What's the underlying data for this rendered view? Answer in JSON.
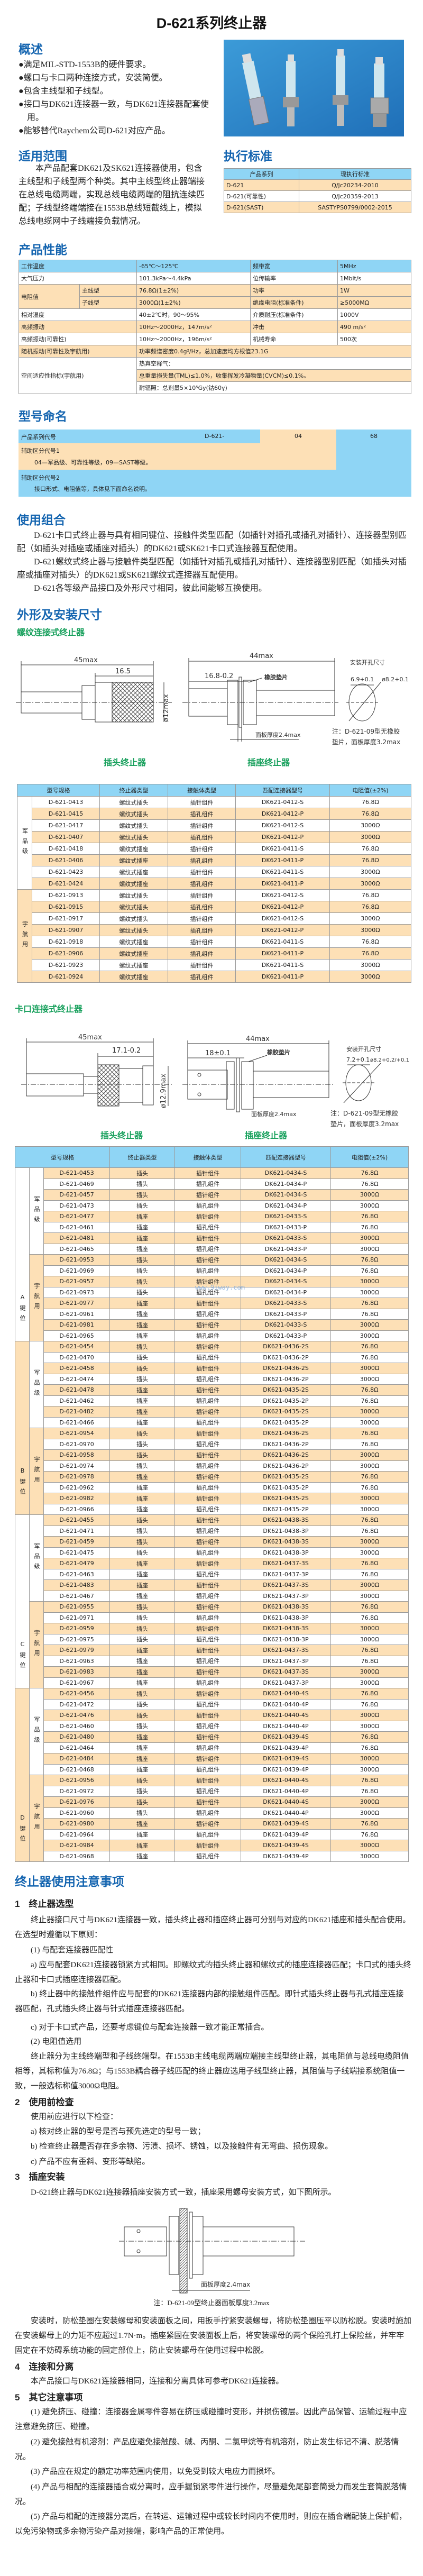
{
  "title": "D-621系列终止器",
  "overview": {
    "heading": "概述",
    "bullets": [
      "●满足MIL-STD-1553B的硬件要求。",
      "●螺口与卡口两种连接方式，安装简便。",
      "●包含主线型和子线型。",
      "●接口与DK621连接器一致，与DK621连接器配套使用。",
      "●能够替代Raychem公司D-621对应产品。"
    ]
  },
  "scope": {
    "heading": "适用范围",
    "text": "本产品配套DK621及SK621连接器使用，包含主线型和子线型两个种类。其中主线型终止器端接在总线电缆两端，实现总线电缆两端的阻抗连续匹配；子线型终端端接在1553B总线短截线上，模拟总线电缆网中子线端接负载情况。"
  },
  "standards": {
    "heading": "执行标准",
    "headers": [
      "产品系列",
      "现执行标准"
    ],
    "rows": [
      [
        "D-621",
        "Q/Jc20234-2010"
      ],
      [
        "D-621(可靠性)",
        "Q/Jc20359-2013"
      ],
      [
        "D-621(SAST)",
        "SASTYPS0799/0002-2015"
      ]
    ]
  },
  "performance": {
    "heading": "产品性能",
    "r1": [
      "工作温度",
      "-65℃～125℃",
      "频带宽",
      "5MHz"
    ],
    "r2": [
      "大气压力",
      "101.3kPa～4.4kPa",
      "位传输率",
      "1Mbit/s"
    ],
    "r3": [
      "电阻值",
      "主线型",
      "76.8Ω(1±2%)",
      "功率",
      "1W"
    ],
    "r4": [
      "子线型",
      "3000Ω(1±2%)",
      "绝缘电阻(标准条件)",
      "≥5000MΩ"
    ],
    "r5": [
      "相对湿度",
      "40±2℃时，90～95%",
      "介质耐压(标准条件)",
      "1000V"
    ],
    "r6": [
      "高频振动",
      "10Hz～2000Hz，147m/s²",
      "冲击",
      "490 m/s²"
    ],
    "r7": [
      "高频振动(可靠性)",
      "10Hz～2000Hz，196m/s²",
      "机械寿命",
      "500次"
    ],
    "r8": [
      "随机振动(可靠性及宇航用)",
      "功率频谱密度0.4g²/Hz，总加速度均方根值23.1G"
    ],
    "r9": [
      "空间适应性指标(宇航用)",
      "热真空释气：",
      "总重量损失量(TML)≤1.0%，收集挥发冷凝物量(CVCM)≤0.1%。",
      "耐辐照：总剂量5×10⁵Gy(钴60γ)"
    ]
  },
  "naming": {
    "heading": "型号命名",
    "series_label": "产品系列代号",
    "series_code": "D-621-",
    "code1": "04",
    "code2": "68",
    "aux1_label": "辅助区分代号1",
    "aux1_desc": "04—军品级、可靠性等级，09—SAST等级。",
    "aux2_label": "辅助区分代号2",
    "aux2_desc": "接口形式、电阻值等，具体见下面命名说明。"
  },
  "combination": {
    "heading": "使用组合",
    "paras": [
      "D-621卡口式终止器与具有相同键位、接触件类型匹配（如插针对插孔或插孔对插针）、连接器型别匹配（如插头对插座或插座对插头）的DK621或SK621卡口式连接器互配使用。",
      "D-621螺纹式终止器与接触件类型匹配（如插针对插孔或插孔对插针）、连接器型别匹配（如插头对插座或插座对插头）的DK621或SK621螺纹式连接器互配使用。",
      "D-621各等级产品接口及外形尺寸相同，彼此间能够互换使用。"
    ]
  },
  "dimensions": {
    "heading": "外形及安装尺寸",
    "threaded": {
      "heading": "螺纹连接式终止器",
      "plug_len": "45max",
      "plug_nut": "16.5",
      "plug_dia": "ø12max",
      "rec_len": "44max",
      "rec_front": "16.8-0.2",
      "gasket": "橡胶垫片",
      "panel": "面板厚度2.4max",
      "hole_title": "安装开孔尺寸",
      "hole_w": "6.9+0.1",
      "hole_d": "ø8.2+0.1",
      "note1": "注：D-621-09型无橡胶",
      "note2": "垫片，面板厚度3.2max",
      "plug_caption": "插头终止器",
      "rec_caption": "插座终止器"
    },
    "bayonet": {
      "heading": "卡口连接式终止器",
      "plug_len": "45max",
      "plug_nut": "17.1-0.2",
      "plug_dia": "ø12.9max",
      "rec_len": "44max",
      "rec_front": "18±0.1",
      "gasket": "橡胶垫片",
      "panel": "面板厚度2.4max",
      "hole_title": "安装开孔尺寸",
      "hole_w": "7.2+0.1",
      "hole_d": "ø8.2+0.2/+0.1",
      "note1": "注：D-621-09型无橡胶",
      "note2": "垫片，面板厚度3.2max",
      "plug_caption": "插头终止器",
      "rec_caption": "插座终止器"
    }
  },
  "table_headers": [
    "型号规格",
    "终止器类型",
    "接触体类型",
    "匹配连接器型号",
    "电阻值(±2%)"
  ],
  "threaded_table": {
    "groups": [
      "军品级",
      "宇航用"
    ],
    "rows": [
      [
        "D-621-0413",
        "螺纹式插头",
        "插针组件",
        "DK621-0412-S",
        "76.8Ω"
      ],
      [
        "D-621-0415",
        "螺纹式插头",
        "插孔组件",
        "DK621-0412-P",
        "76.8Ω"
      ],
      [
        "D-621-0417",
        "螺纹式插头",
        "插针组件",
        "DK621-0412-S",
        "3000Ω"
      ],
      [
        "D-621-0407",
        "螺纹式插头",
        "插孔组件",
        "DK621-0412-P",
        "3000Ω"
      ],
      [
        "D-621-0418",
        "螺纹式插座",
        "插针组件",
        "DK621-0411-S",
        "76.8Ω"
      ],
      [
        "D-621-0406",
        "螺纹式插座",
        "插孔组件",
        "DK621-0411-P",
        "76.8Ω"
      ],
      [
        "D-621-0423",
        "螺纹式插座",
        "插针组件",
        "DK621-0411-S",
        "3000Ω"
      ],
      [
        "D-621-0424",
        "螺纹式插座",
        "插孔组件",
        "DK621-0411-P",
        "3000Ω"
      ],
      [
        "D-621-0913",
        "螺纹式插头",
        "插针组件",
        "DK621-0412-S",
        "76.8Ω"
      ],
      [
        "D-621-0915",
        "螺纹式插头",
        "插孔组件",
        "DK621-0412-P",
        "76.8Ω"
      ],
      [
        "D-621-0917",
        "螺纹式插头",
        "插针组件",
        "DK621-0412-S",
        "3000Ω"
      ],
      [
        "D-621-0907",
        "螺纹式插头",
        "插孔组件",
        "DK621-0412-P",
        "3000Ω"
      ],
      [
        "D-621-0918",
        "螺纹式插座",
        "插针组件",
        "DK621-0411-S",
        "76.8Ω"
      ],
      [
        "D-621-0906",
        "螺纹式插座",
        "插孔组件",
        "DK621-0411-P",
        "76.8Ω"
      ],
      [
        "D-621-0923",
        "螺纹式插座",
        "插针组件",
        "DK621-0411-S",
        "3000Ω"
      ],
      [
        "D-621-0924",
        "螺纹式插座",
        "插孔组件",
        "DK621-0411-P",
        "3000Ω"
      ]
    ]
  },
  "bayonet_table": {
    "keys": [
      "A键位",
      "B键位",
      "C键位",
      "D键位"
    ],
    "grades": [
      "军品级",
      "宇航用"
    ],
    "rows": [
      [
        "D-621-0453",
        "插头",
        "插针组件",
        "DK621-0434-S",
        "76.8Ω"
      ],
      [
        "D-621-0469",
        "插头",
        "插孔组件",
        "DK621-0434-P",
        "76.8Ω"
      ],
      [
        "D-621-0457",
        "插头",
        "插针组件",
        "DK621-0434-S",
        "3000Ω"
      ],
      [
        "D-621-0473",
        "插头",
        "插孔组件",
        "DK621-0434-P",
        "3000Ω"
      ],
      [
        "D-621-0477",
        "插座",
        "插针组件",
        "DK621-0433-S",
        "76.8Ω"
      ],
      [
        "D-621-0461",
        "插座",
        "插孔组件",
        "DK621-0433-P",
        "76.8Ω"
      ],
      [
        "D-621-0481",
        "插座",
        "插针组件",
        "DK621-0433-S",
        "3000Ω"
      ],
      [
        "D-621-0465",
        "插座",
        "插孔组件",
        "DK621-0433-P",
        "3000Ω"
      ],
      [
        "D-621-0953",
        "插头",
        "插针组件",
        "DK621-0434-S",
        "76.8Ω"
      ],
      [
        "D-621-0969",
        "插头",
        "插孔组件",
        "DK621-0434-P",
        "76.8Ω"
      ],
      [
        "D-621-0957",
        "插头",
        "插针组件",
        "DK621-0434-S",
        "3000Ω"
      ],
      [
        "D-621-0973",
        "插头",
        "插孔组件",
        "DK621-0434-P",
        "3000Ω"
      ],
      [
        "D-621-0977",
        "插座",
        "插针组件",
        "DK621-0433-S",
        "76.8Ω"
      ],
      [
        "D-621-0961",
        "插座",
        "插孔组件",
        "DK621-0433-P",
        "76.8Ω"
      ],
      [
        "D-621-0981",
        "插座",
        "插针组件",
        "DK621-0433-S",
        "3000Ω"
      ],
      [
        "D-621-0965",
        "插座",
        "插孔组件",
        "DK621-0433-P",
        "3000Ω"
      ],
      [
        "D-621-0454",
        "插头",
        "插针组件",
        "DK621-0436-2S",
        "76.8Ω"
      ],
      [
        "D-621-0470",
        "插头",
        "插孔组件",
        "DK621-0436-2P",
        "76.8Ω"
      ],
      [
        "D-621-0458",
        "插头",
        "插针组件",
        "DK621-0436-2S",
        "3000Ω"
      ],
      [
        "D-621-0474",
        "插头",
        "插孔组件",
        "DK621-0436-2P",
        "3000Ω"
      ],
      [
        "D-621-0478",
        "插座",
        "插针组件",
        "DK621-0435-2S",
        "76.8Ω"
      ],
      [
        "D-621-0462",
        "插座",
        "插孔组件",
        "DK621-0435-2P",
        "76.8Ω"
      ],
      [
        "D-621-0482",
        "插座",
        "插针组件",
        "DK621-0435-2S",
        "3000Ω"
      ],
      [
        "D-621-0466",
        "插座",
        "插孔组件",
        "DK621-0435-2P",
        "3000Ω"
      ],
      [
        "D-621-0954",
        "插头",
        "插针组件",
        "DK621-0436-2S",
        "76.8Ω"
      ],
      [
        "D-621-0970",
        "插头",
        "插孔组件",
        "DK621-0436-2P",
        "76.8Ω"
      ],
      [
        "D-621-0958",
        "插头",
        "插针组件",
        "DK621-0436-2S",
        "3000Ω"
      ],
      [
        "D-621-0974",
        "插头",
        "插孔组件",
        "DK621-0436-2P",
        "3000Ω"
      ],
      [
        "D-621-0978",
        "插座",
        "插针组件",
        "DK621-0435-2S",
        "76.8Ω"
      ],
      [
        "D-621-0962",
        "插座",
        "插孔组件",
        "DK621-0435-2P",
        "76.8Ω"
      ],
      [
        "D-621-0982",
        "插座",
        "插针组件",
        "DK621-0435-2S",
        "3000Ω"
      ],
      [
        "D-621-0966",
        "插座",
        "插孔组件",
        "DK621-0435-2P",
        "3000Ω"
      ],
      [
        "D-621-0455",
        "插头",
        "插针组件",
        "DK621-0438-3S",
        "76.8Ω"
      ],
      [
        "D-621-0471",
        "插头",
        "插孔组件",
        "DK621-0438-3P",
        "76.8Ω"
      ],
      [
        "D-621-0459",
        "插头",
        "插针组件",
        "DK621-0438-3S",
        "3000Ω"
      ],
      [
        "D-621-0475",
        "插头",
        "插孔组件",
        "DK621-0438-3P",
        "3000Ω"
      ],
      [
        "D-621-0479",
        "插座",
        "插针组件",
        "DK621-0437-3S",
        "76.8Ω"
      ],
      [
        "D-621-0463",
        "插座",
        "插孔组件",
        "DK621-0437-3P",
        "76.8Ω"
      ],
      [
        "D-621-0483",
        "插座",
        "插针组件",
        "DK621-0437-3S",
        "3000Ω"
      ],
      [
        "D-621-0467",
        "插座",
        "插孔组件",
        "DK621-0437-3P",
        "3000Ω"
      ],
      [
        "D-621-0955",
        "插头",
        "插针组件",
        "DK621-0438-3S",
        "76.8Ω"
      ],
      [
        "D-621-0971",
        "插头",
        "插孔组件",
        "DK621-0438-3P",
        "76.8Ω"
      ],
      [
        "D-621-0959",
        "插头",
        "插针组件",
        "DK621-0438-3S",
        "3000Ω"
      ],
      [
        "D-621-0975",
        "插头",
        "插孔组件",
        "DK621-0438-3P",
        "3000Ω"
      ],
      [
        "D-621-0979",
        "插座",
        "插针组件",
        "DK621-0437-3S",
        "76.8Ω"
      ],
      [
        "D-621-0963",
        "插座",
        "插孔组件",
        "DK621-0437-3P",
        "76.8Ω"
      ],
      [
        "D-621-0983",
        "插座",
        "插针组件",
        "DK621-0437-3S",
        "3000Ω"
      ],
      [
        "D-621-0967",
        "插座",
        "插孔组件",
        "DK621-0437-3P",
        "3000Ω"
      ],
      [
        "D-621-0456",
        "插头",
        "插针组件",
        "DK621-0440-4S",
        "76.8Ω"
      ],
      [
        "D-621-0472",
        "插头",
        "插孔组件",
        "DK621-0440-4P",
        "76.8Ω"
      ],
      [
        "D-621-0476",
        "插头",
        "插针组件",
        "DK621-0440-4S",
        "3000Ω"
      ],
      [
        "D-621-0460",
        "插头",
        "插孔组件",
        "DK621-0440-4P",
        "3000Ω"
      ],
      [
        "D-621-0480",
        "插座",
        "插针组件",
        "DK621-0439-4S",
        "76.8Ω"
      ],
      [
        "D-621-0464",
        "插座",
        "插孔组件",
        "DK621-0439-4P",
        "76.8Ω"
      ],
      [
        "D-621-0484",
        "插座",
        "插针组件",
        "DK621-0439-4S",
        "3000Ω"
      ],
      [
        "D-621-0468",
        "插座",
        "插孔组件",
        "DK621-0439-4P",
        "3000Ω"
      ],
      [
        "D-621-0956",
        "插头",
        "插针组件",
        "DK621-0440-4S",
        "76.8Ω"
      ],
      [
        "D-621-0972",
        "插头",
        "插孔组件",
        "DK621-0440-4P",
        "76.8Ω"
      ],
      [
        "D-621-0976",
        "插头",
        "插针组件",
        "DK621-0440-4S",
        "3000Ω"
      ],
      [
        "D-621-0960",
        "插头",
        "插孔组件",
        "DK621-0440-4P",
        "3000Ω"
      ],
      [
        "D-621-0980",
        "插座",
        "插针组件",
        "DK621-0439-4S",
        "76.8Ω"
      ],
      [
        "D-621-0964",
        "插座",
        "插孔组件",
        "DK621-0439-4P",
        "76.8Ω"
      ],
      [
        "D-621-0984",
        "插座",
        "插针组件",
        "DK621-0439-4S",
        "3000Ω"
      ],
      [
        "D-621-0968",
        "插座",
        "插孔组件",
        "DK621-0439-4P",
        "3000Ω"
      ]
    ]
  },
  "watermark": "www.9iway.com",
  "notes": {
    "heading": "终止器使用注意事项",
    "s1": "1　终止器选型",
    "s1p": "终止器接口尺寸与DK621连接器一致，插头终止器和插座终止器可分别与对应的DK621插座和插头配合使用。在选型时遵循以下原则：",
    "s1_1": "(1) 与配套连接器匹配性",
    "s1a": "a) 应与配套DK621连接器锁紧方式相同。即螺纹式的插头终止器和螺纹式的插座连接器匹配；卡口式的插头终止器和卡口式插座连接器匹配。",
    "s1b": "b) 终止器中的接触件组件应与配套的DK621连接器内部的接触组件匹配。即针式插头终止器与孔式插座连接器匹配，孔式插头终止器与针式插座连接器匹配。",
    "s1c": "c) 对于卡口式产品，还要考虑键位与配套连接器一致才能正常插合。",
    "s1_2": "(2) 电阻值选用",
    "s1_2p": "终止器分为主线终端型和子线终端型。在1553B主线电缆两端应端接主线型终止器，其电阻值与总线电缆阻值相等，其标称值为76.8Ω；与1553B耦合器子线匹配的终止器应选用子线型终止器，其阻值与子线端接系统阻值一致，一般选标称值3000Ω电阻。",
    "s2": "2　使用前检查",
    "s2p": "使用前应进行以下检查：",
    "s2a": "a) 核对终止器的型号是否与预先选定的型号一致；",
    "s2b": "b) 检查终止器是否存在多余物、污渍、损坏、锈蚀，以及接触件有无弯曲、损伤现象。",
    "s2c": "c) 产品不应有歪斜、变形等缺陷。",
    "s3": "3　插座安装",
    "s3p": "D-621终止器与DK621连接器插座安装方式一致，插座采用螺母安装方式，如下图所示。",
    "s3_panel": "面板厚度2.4max",
    "s3_note": "注：D-621-09型终止器面板厚度3.2max",
    "s3p2": "安装时，防松垫圈在安装螺母和安装面板之间，用扳手拧紧安装螺母，将防松垫圈压平以防松脱。安装时施加在安装螺母上的力矩不应超过1.7N·m。插座紧固在安装面板上后，将安装螺母的两个保险孔打上保险丝，并牢牢固定在不妨碍系统功能的固定部位上，防止安装螺母在使用过程中松脱。",
    "s4": "4　连接和分离",
    "s4p": "本产品接口与DK621连接器相同，连接和分离具体可参考DK621连接器。",
    "s5": "5　其它注意事项",
    "s5_1": "(1) 避免挤压、碰撞：连接器金属零件容易在挤压或碰撞时变形，并损伤镀层。因此产品保管、运输过程中应注意避免挤压、碰撞。",
    "s5_2": "(2) 避免接触有机溶剂：产品应避免接触酸、碱、丙酮、二氯甲烷等有机溶剂，防止发生标记不清、脱落情况。",
    "s5_3": "(3) 产品应在规定的额定功率范围内使用，以免受到较大电应力而损坏。",
    "s5_4": "(4) 产品与相配的连接器插合或分离时，应手握锁紧零件进行操作，尽量避免尾部套筒受力而发生套筒脱落情况。",
    "s5_5": "(5) 产品与相配的连接器分离后，在转运、运输过程中或较长时间内不使用时，则应在插合端配装上保护帽，以免污染物或多余物污染产品对接端，影响产品的正常使用。"
  },
  "colors": {
    "heading": "#1565b0",
    "subheading": "#17a05c",
    "table_blue": "#8fd5f5",
    "table_orange": "#fde0b6"
  }
}
